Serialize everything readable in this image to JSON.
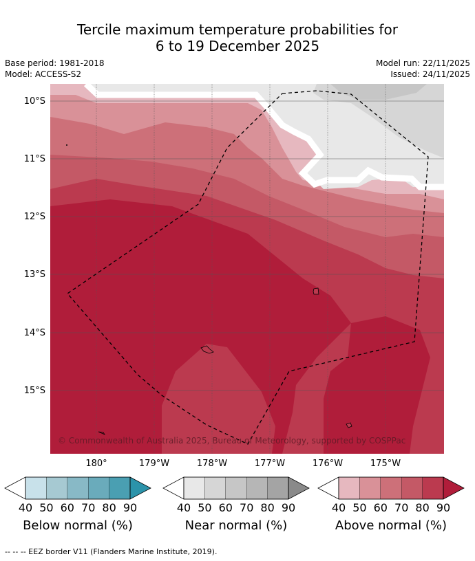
{
  "title_line1": "Tercile maximum temperature probabilities for",
  "title_line2": "6 to 19 December 2025",
  "base_period": "Base period: 1981-2018",
  "model": "Model: ACCESS-S2",
  "model_run": "Model run: 22/11/2025",
  "issued": "Issued: 24/11/2025",
  "copyright": "© Commonwealth of Australia 2025, Bureau of Meteorology, supported by COSPPac",
  "lat_labels": [
    "10°S",
    "11°S",
    "12°S",
    "13°S",
    "14°S",
    "15°S"
  ],
  "lon_labels": [
    "180°",
    "179°W",
    "178°W",
    "177°W",
    "176°W",
    "175°W"
  ],
  "colorbars": [
    {
      "title": "Below normal (%)",
      "ticks": [
        "40",
        "50",
        "60",
        "70",
        "80",
        "90"
      ],
      "colors": [
        "#ffffff",
        "#c8e1ea",
        "#a6c9d2",
        "#88b9c6",
        "#6aabbb",
        "#4a9fb2",
        "#2b93aa"
      ]
    },
    {
      "title": "Near normal (%)",
      "ticks": [
        "40",
        "50",
        "60",
        "70",
        "80",
        "90"
      ],
      "colors": [
        "#ffffff",
        "#e8e8e8",
        "#d6d6d6",
        "#c6c6c6",
        "#b6b6b6",
        "#a4a4a4",
        "#8a8a8a"
      ]
    },
    {
      "title": "Above normal (%)",
      "ticks": [
        "40",
        "50",
        "60",
        "70",
        "80",
        "90"
      ],
      "colors": [
        "#ffffff",
        "#e6b8bf",
        "#d99198",
        "#cd7079",
        "#c45966",
        "#bb3a4f",
        "#b01d3a"
      ]
    }
  ],
  "footnote": "--  --  -- EEZ border V11 (Flanders Marine Institute, 2019)."
}
